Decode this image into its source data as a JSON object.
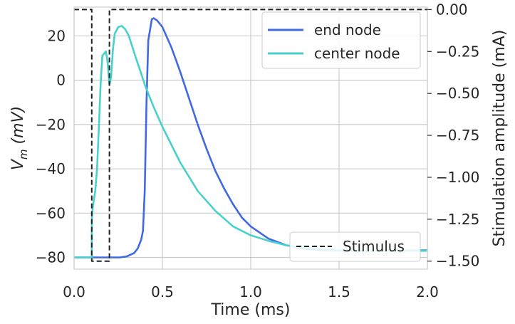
{
  "chart_data": {
    "type": "line",
    "xlabel": "Time (ms)",
    "ylabel_main": "V",
    "ylabel_sub": "m",
    "ylabel_unit": " (mV)",
    "ylabel_right": "Stimulation amplitude (mA)",
    "xlim": [
      0.0,
      2.0
    ],
    "ylim_left": [
      -85.3,
      33.0
    ],
    "ylim_right": [
      -1.5478,
      0.0145
    ],
    "x_ticks": [
      0.0,
      0.5,
      1.0,
      1.5,
      2.0
    ],
    "x_tick_labels": [
      "0.0",
      "0.5",
      "1.0",
      "1.5",
      "2.0"
    ],
    "y_left_ticks": [
      20,
      0,
      -20,
      -40,
      -60,
      -80
    ],
    "y_left_tick_labels": [
      "20",
      "0",
      "−20",
      "−40",
      "−60",
      "−80"
    ],
    "y_right_ticks": [
      0.0,
      -0.25,
      -0.5,
      -0.75,
      -1.0,
      -1.25,
      -1.5
    ],
    "y_right_tick_labels": [
      "0.00",
      "−0.25",
      "−0.50",
      "−0.75",
      "−1.00",
      "−1.25",
      "−1.50"
    ],
    "grid": true,
    "series": [
      {
        "name": "end node",
        "axis": "left",
        "color": "#4169E1",
        "x": [
          0.0,
          0.1,
          0.2,
          0.26,
          0.3,
          0.34,
          0.36,
          0.38,
          0.39,
          0.4,
          0.41,
          0.42,
          0.44,
          0.45,
          0.47,
          0.5,
          0.55,
          0.6,
          0.65,
          0.7,
          0.75,
          0.8,
          0.85,
          0.9,
          0.95,
          1.0,
          1.1,
          1.2,
          1.3,
          1.4,
          1.6,
          1.8,
          2.0
        ],
        "y": [
          -80,
          -80,
          -80,
          -80,
          -79.5,
          -78,
          -76,
          -72,
          -68,
          -50,
          -10,
          18,
          27.5,
          28,
          27,
          24,
          15,
          4,
          -8,
          -20,
          -31,
          -41,
          -49,
          -56,
          -62,
          -66,
          -71.5,
          -74.5,
          -76,
          -76.7,
          -77,
          -76.9,
          -76.8
        ]
      },
      {
        "name": "center node",
        "axis": "left",
        "color": "#48D1CC",
        "x": [
          0.0,
          0.1,
          0.101,
          0.105,
          0.11,
          0.12,
          0.13,
          0.14,
          0.15,
          0.16,
          0.18,
          0.19,
          0.2,
          0.205,
          0.21,
          0.22,
          0.23,
          0.25,
          0.27,
          0.29,
          0.31,
          0.33,
          0.35,
          0.38,
          0.4,
          0.45,
          0.5,
          0.55,
          0.6,
          0.7,
          0.8,
          0.9,
          1.0,
          1.1,
          1.2,
          1.3,
          1.4,
          1.5,
          1.7,
          2.0
        ],
        "y": [
          -80,
          -80,
          -62,
          -58,
          -55,
          -50,
          -40,
          -22,
          -2,
          11,
          13,
          8,
          -2,
          -0.5,
          2,
          14,
          21,
          24,
          24.5,
          23,
          20,
          15,
          10,
          3,
          -2,
          -12,
          -21,
          -29,
          -37,
          -50,
          -59,
          -66,
          -70,
          -72.5,
          -74.5,
          -75.6,
          -76.3,
          -76.7,
          -77,
          -77
        ]
      },
      {
        "name": "Stimulus",
        "axis": "right",
        "color": "#222222",
        "dashed": true,
        "x": [
          0.0,
          0.1,
          0.1,
          0.2,
          0.2,
          2.0
        ],
        "y": [
          0.0,
          0.0,
          -1.5,
          -1.5,
          0.0,
          0.0
        ]
      }
    ],
    "legends": [
      {
        "placement": "top-right",
        "entries": [
          "end node",
          "center node"
        ]
      },
      {
        "placement": "bottom-right",
        "entries": [
          "Stimulus"
        ]
      }
    ]
  }
}
